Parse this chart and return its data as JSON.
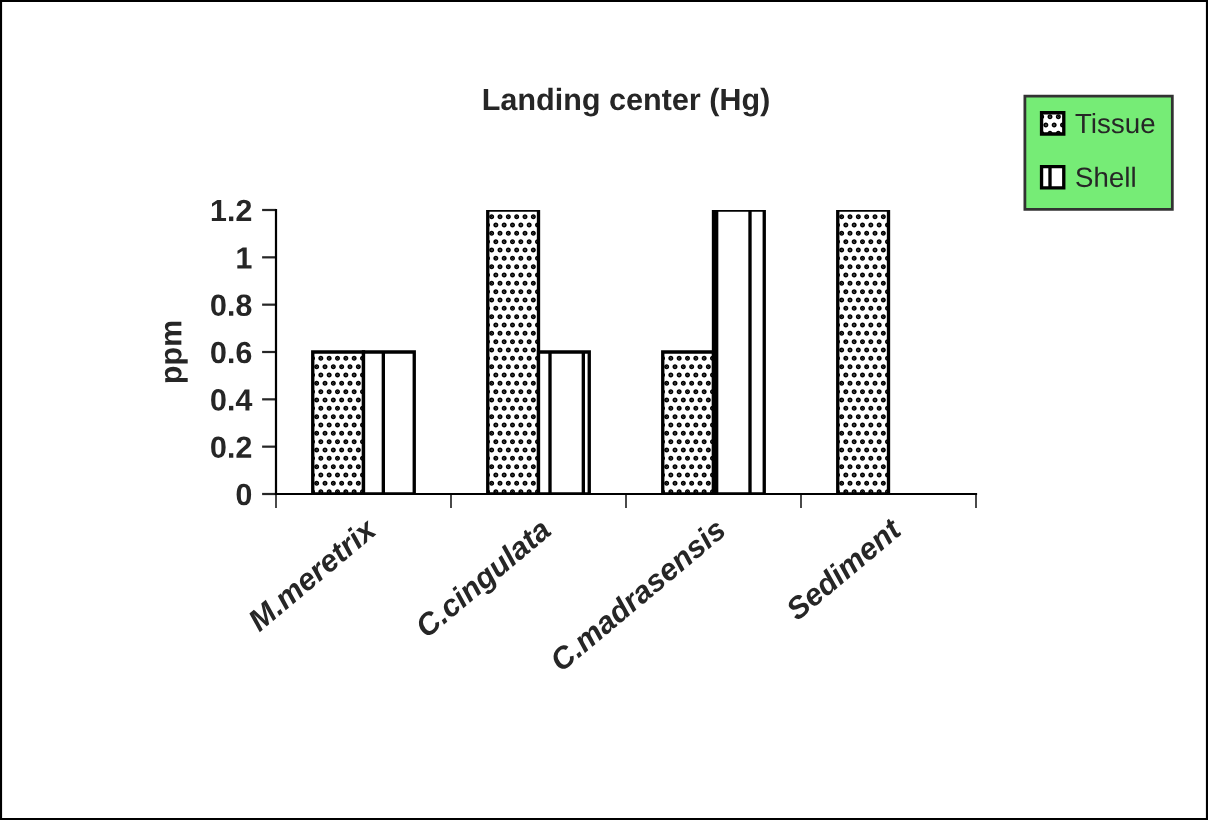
{
  "chart_data": {
    "type": "bar",
    "title": "Landing center (Hg)",
    "ylabel": "ppm",
    "categories": [
      "M.meretrix",
      "C.cingulata",
      "C.madrasensis",
      "Sediment"
    ],
    "series": [
      {
        "name": "Tissue",
        "color": "#000000",
        "values": [
          0.6,
          1.2,
          0.6,
          1.2
        ]
      },
      {
        "name": "Shell",
        "color": "#000000",
        "values": [
          0.6,
          0.6,
          1.2,
          null
        ]
      }
    ],
    "ylim": [
      0,
      1.2
    ],
    "yticks": [
      0,
      0.2,
      0.4,
      0.6,
      0.8,
      1,
      1.2
    ],
    "grid": false,
    "legend": "top right"
  }
}
